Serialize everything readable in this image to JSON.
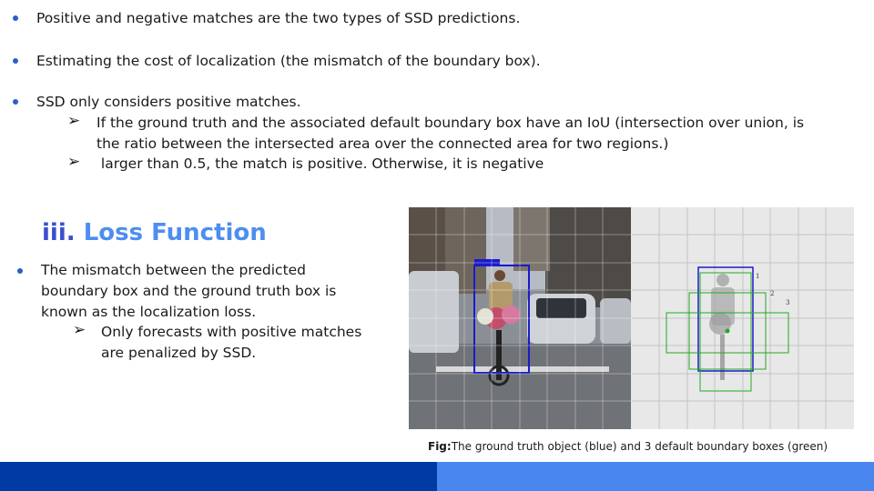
{
  "bullets_top": [
    "Positive and negative matches are the two types of SSD predictions.",
    "Estimating the cost of localization (the mismatch of the boundary box).",
    "SSD only considers positive matches."
  ],
  "sub_bullets_top": [
    "If the ground truth and the associated default boundary box have an IoU (intersection over union, is",
    "the ratio between the intersected area over the connected area for two regions.)",
    " larger than 0.5, the match is positive. Otherwise, it is negative"
  ],
  "section": {
    "number": "iii.",
    "title": "Loss Function"
  },
  "loss_bullet_lines": [
    "The mismatch between the predicted",
    "boundary box and the ground truth box is",
    "known as the localization loss."
  ],
  "loss_sub_lines": [
    "Only forecasts with positive matches",
    "are penalized by SSD."
  ],
  "figure": {
    "box_labels": [
      "1",
      "2",
      "3"
    ],
    "caption_prefix": "Fig:",
    "caption_text": "The ground truth object (blue) and 3 default boundary boxes (green)"
  },
  "colors": {
    "bullet": "#2a5fc4",
    "heading_number": "#3a4fd0",
    "heading_title": "#4d8ef0",
    "ground_truth_box": "#1a1acc",
    "default_box": "#22aa22",
    "footer_left": "#003ba3",
    "footer_right": "#4a86f0"
  }
}
